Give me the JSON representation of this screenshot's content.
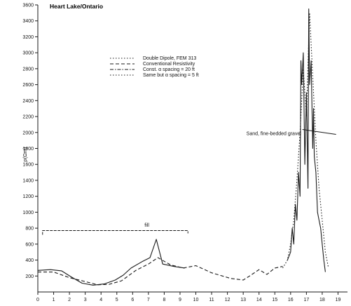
{
  "chart_data": {
    "type": "line",
    "title": "Heart Lake/Ontario",
    "xlabel": "",
    "ylabel": "ρ(Ωm)",
    "x_ticks": [
      "0",
      "1",
      "2",
      "3",
      "4",
      "5",
      "6",
      "7",
      "8",
      "9",
      "10",
      "11",
      "12",
      "13",
      "14",
      "15",
      "16",
      "17",
      "18",
      "19"
    ],
    "x_tick_values": [
      0,
      1,
      2,
      3,
      4,
      5,
      6,
      7,
      8,
      9,
      10,
      11,
      12,
      13,
      14,
      15,
      16,
      17,
      18,
      19
    ],
    "y_ticks": [
      "200",
      "400",
      "600",
      "800",
      "1000",
      "1200",
      "1400",
      "1600",
      "1800",
      "2000",
      "2200",
      "2400",
      "2600",
      "2800",
      "3000",
      "3200",
      "3400",
      "3600"
    ],
    "y_tick_values": [
      200,
      400,
      600,
      800,
      1000,
      1200,
      1400,
      1600,
      1800,
      2000,
      2200,
      2400,
      2600,
      2800,
      3000,
      3200,
      3400,
      3600
    ],
    "xlim": [
      0,
      19.6
    ],
    "ylim": [
      0,
      3600
    ],
    "grid": false,
    "legend_position": "top-center",
    "legend": [
      "Double Dipole, FEM 313",
      "Conventional Resistivity",
      "Const. α spacing = 20 ft",
      "Same but α spacing = 5 ft"
    ],
    "series": [
      {
        "style": "solid",
        "x": [
          0.0,
          0.8,
          1.5,
          2.1,
          2.8,
          3.5,
          4.2,
          4.9,
          5.4,
          5.9,
          6.6,
          7.1,
          7.5,
          7.9,
          8.6,
          9.3
        ],
        "y": [
          270,
          280,
          265,
          190,
          110,
          85,
          100,
          150,
          210,
          300,
          380,
          430,
          660,
          350,
          320,
          300
        ]
      },
      {
        "style": "dashed",
        "x": [
          0.0,
          1.0,
          2.0,
          3.0,
          3.8,
          4.5,
          5.3,
          6.2,
          7.0,
          7.6,
          8.4,
          9.2,
          10.0,
          11.0,
          12.2,
          13.0,
          13.4,
          14.0,
          14.5,
          15.0,
          15.5
        ],
        "y": [
          250,
          250,
          180,
          130,
          90,
          95,
          140,
          270,
          350,
          430,
          340,
          300,
          330,
          240,
          170,
          150,
          200,
          280,
          220,
          300,
          320
        ]
      },
      {
        "style": "solid",
        "x": [
          15.8,
          16.0,
          16.1,
          16.2,
          16.3,
          16.4,
          16.5,
          16.6,
          16.65,
          16.7,
          16.8,
          16.9,
          17.0,
          17.1,
          17.15,
          17.2,
          17.3,
          17.4,
          17.45,
          17.5,
          17.6,
          17.7,
          17.8,
          17.9,
          18.0,
          18.1,
          18.2
        ],
        "y": [
          400,
          500,
          800,
          600,
          1100,
          900,
          1500,
          1200,
          2900,
          2600,
          3000,
          1600,
          2500,
          1300,
          3550,
          2600,
          2900,
          1800,
          2300,
          1700,
          1500,
          1000,
          900,
          800,
          600,
          400,
          250
        ]
      },
      {
        "style": "dotted",
        "x": [
          15.5,
          15.8,
          16.0,
          16.2,
          16.4,
          16.6,
          16.8,
          17.0,
          17.2,
          17.4,
          17.6,
          17.8,
          18.0,
          18.2,
          18.4
        ],
        "y": [
          300,
          400,
          600,
          900,
          1400,
          2000,
          2800,
          2200,
          3500,
          2700,
          1900,
          1300,
          900,
          500,
          300
        ]
      }
    ],
    "annotations": [
      {
        "text": "fill",
        "x": 6.9,
        "y": 800
      },
      {
        "text": "Sand, fine-bedded gravel",
        "x": 13.2,
        "y": 1950
      }
    ],
    "bracket": {
      "x_start": 0.3,
      "x_end": 9.5,
      "y": 770
    }
  }
}
